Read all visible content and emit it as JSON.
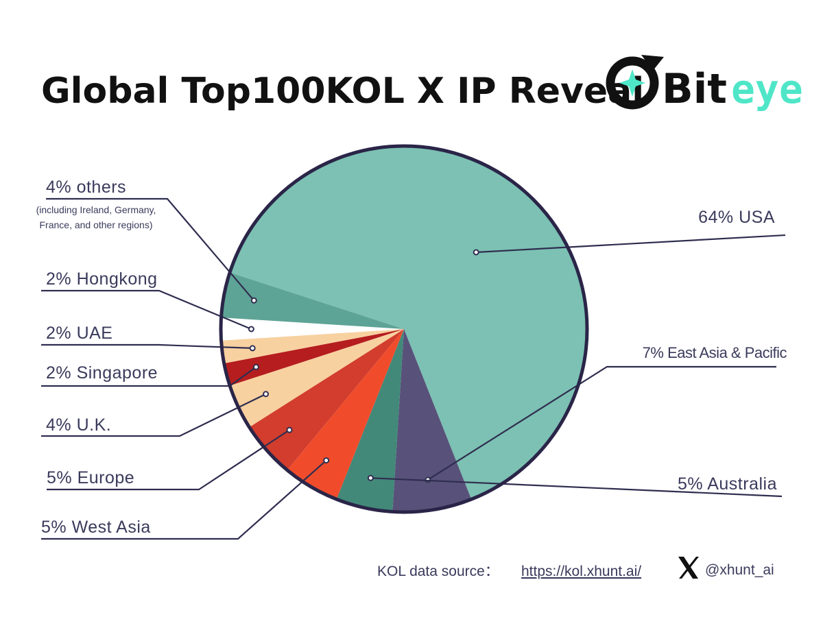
{
  "header": {
    "title": "Global Top100KOL X IP Reveal",
    "logo_text": "Bit",
    "logo_accent": "eye"
  },
  "chart_data": {
    "type": "pie",
    "title": "Global Top100KOL X IP Reveal",
    "slices": [
      {
        "key": "usa",
        "label": "64% USA",
        "value": 64,
        "color": "#7cc1b3"
      },
      {
        "key": "east-asia-pacific",
        "label": "7% East Asia & Pacific",
        "value": 7,
        "color": "#58527a"
      },
      {
        "key": "australia",
        "label": "5%  Australia",
        "value": 5,
        "color": "#428979"
      },
      {
        "key": "west-asia",
        "label": "5%  West Asia",
        "value": 5,
        "color": "#f04c2c"
      },
      {
        "key": "europe",
        "label": "5%  Europe",
        "value": 5,
        "color": "#d23d2d"
      },
      {
        "key": "uk",
        "label": "4%  U.K.",
        "value": 4,
        "color": "#f8d1a0"
      },
      {
        "key": "singapore",
        "label": "2%  Singapore",
        "value": 2,
        "color": "#b51d1f"
      },
      {
        "key": "uae",
        "label": "2% UAE",
        "value": 2,
        "color": "#f8d1a0"
      },
      {
        "key": "hongkong",
        "label": "2%  Hongkong",
        "value": 2,
        "color": "#ffffff"
      },
      {
        "key": "others",
        "label": "4% others",
        "value": 4,
        "color": "#5ea496",
        "note": [
          "(including Ireland, Germany,",
          "France, and other regions)"
        ]
      }
    ]
  },
  "footer": {
    "source_label": "KOL data source：",
    "source_url": "https://kol.xhunt.ai/",
    "handle": "@xhunt_ai"
  },
  "icons": {
    "x": "x-logo-icon",
    "logo": "biteye-logo-icon"
  },
  "colors": {
    "border": "#2a2548",
    "leader": "#2f2d4f",
    "accent": "#4fe6c8"
  }
}
